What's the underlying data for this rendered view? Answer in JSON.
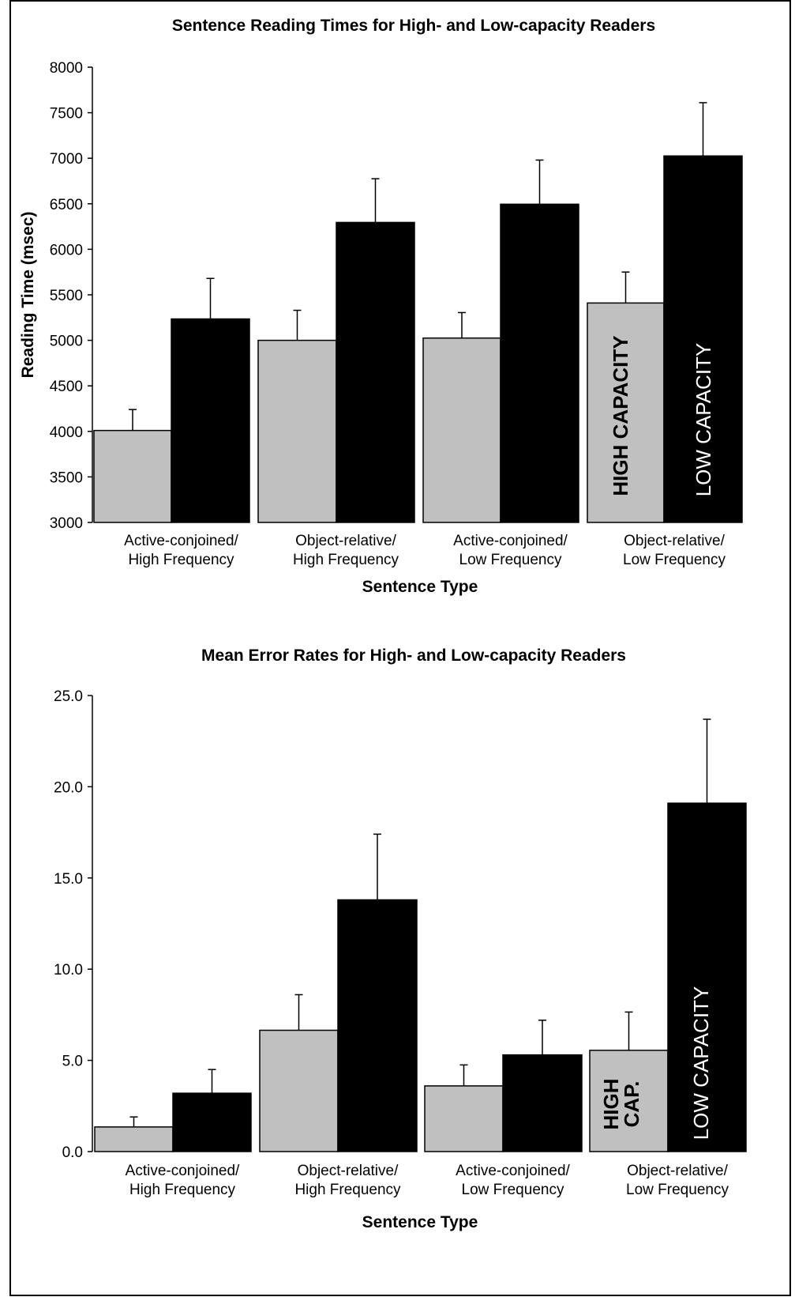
{
  "chart_data": [
    {
      "type": "bar",
      "title": "Sentence Reading Times for High- and Low-capacity Readers",
      "xlabel": "Sentence Type",
      "ylabel": "Reading Time (msec)",
      "ylim": [
        3000,
        8000
      ],
      "yticks": [
        "3000",
        "3500",
        "4000",
        "4500",
        "5000",
        "5500",
        "6000",
        "6500",
        "7000",
        "7500",
        "8000"
      ],
      "categories": [
        [
          "Active-conjoined/",
          "High Frequency"
        ],
        [
          "Object-relative/",
          "High Frequency"
        ],
        [
          "Active-conjoined/",
          "Low Frequency"
        ],
        [
          "Object-relative/",
          "Low Frequency"
        ]
      ],
      "series": [
        {
          "name": "HIGH CAPACITY",
          "color": "#c0c0c0",
          "values": [
            4010,
            5000,
            5025,
            5410
          ],
          "error": [
            230,
            330,
            280,
            340
          ]
        },
        {
          "name": "LOW CAPACITY",
          "color": "#000000",
          "values": [
            5235,
            6295,
            6495,
            7025
          ],
          "error": [
            445,
            480,
            485,
            585
          ]
        }
      ],
      "in_bar_labels": {
        "high": [
          "HIGH CAPACITY"
        ],
        "low": [
          "LOW CAPACITY"
        ]
      },
      "grid": false
    },
    {
      "type": "bar",
      "title": "Mean Error Rates for High- and Low-capacity Readers",
      "xlabel": "Sentence Type",
      "ylabel": "",
      "ylim": [
        0,
        25
      ],
      "yticks": [
        "0.0",
        "5.0",
        "10.0",
        "15.0",
        "20.0",
        "25.0"
      ],
      "categories": [
        [
          "Active-conjoined/",
          "High Frequency"
        ],
        [
          "Object-relative/",
          "High Frequency"
        ],
        [
          "Active-conjoined/",
          "Low Frequency"
        ],
        [
          "Object-relative/",
          "Low Frequency"
        ]
      ],
      "series": [
        {
          "name": "HIGH CAP.",
          "color": "#c0c0c0",
          "values": [
            1.35,
            6.65,
            3.6,
            5.55
          ],
          "error": [
            0.55,
            1.95,
            1.15,
            2.1
          ]
        },
        {
          "name": "LOW CAPACITY",
          "color": "#000000",
          "values": [
            3.2,
            13.8,
            5.3,
            19.1
          ],
          "error": [
            1.3,
            3.6,
            1.9,
            4.6
          ]
        }
      ],
      "in_bar_labels": {
        "high": [
          "HIGH",
          "CAP."
        ],
        "low": [
          "LOW CAPACITY"
        ]
      },
      "grid": false
    }
  ]
}
